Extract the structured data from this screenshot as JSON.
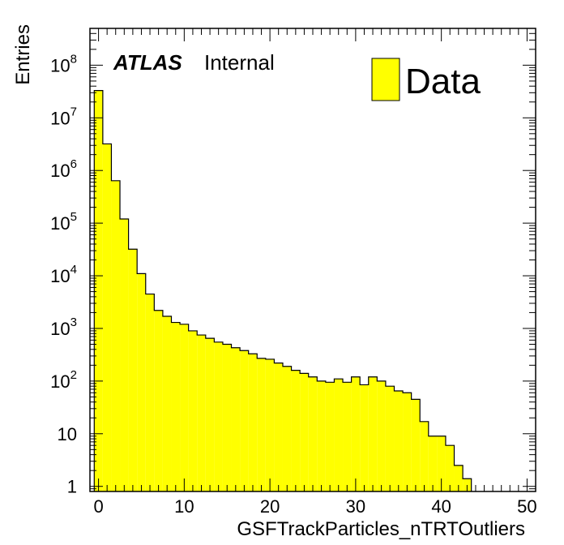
{
  "chart_data": {
    "type": "bar",
    "histogram": true,
    "y_scale": "log",
    "xlabel": "GSFTrackParticles_nTRTOutliers",
    "ylabel": "Entries",
    "xlim": [
      -1,
      51
    ],
    "ylim": [
      0.8,
      500000000
    ],
    "x_ticks": [
      0,
      10,
      20,
      30,
      40,
      50
    ],
    "x_tick_labels": [
      "0",
      "10",
      "20",
      "30",
      "40",
      "50"
    ],
    "y_ticks": [
      {
        "value": 1,
        "base": "1",
        "exp": ""
      },
      {
        "value": 10,
        "base": "10",
        "exp": ""
      },
      {
        "value": 100,
        "base": "10",
        "exp": "2"
      },
      {
        "value": 1000,
        "base": "10",
        "exp": "3"
      },
      {
        "value": 10000,
        "base": "10",
        "exp": "4"
      },
      {
        "value": 100000,
        "base": "10",
        "exp": "5"
      },
      {
        "value": 1000000,
        "base": "10",
        "exp": "6"
      },
      {
        "value": 10000000,
        "base": "10",
        "exp": "7"
      },
      {
        "value": 100000000,
        "base": "10",
        "exp": "8"
      }
    ],
    "bin_edges_start": -0.5,
    "bin_width": 1,
    "series": [
      {
        "name": "Data",
        "color": "#ffff00",
        "values": [
          33000000,
          3200000,
          640000,
          120000,
          32000,
          11000,
          4500,
          2200,
          1700,
          1300,
          1200,
          900,
          750,
          650,
          550,
          500,
          430,
          380,
          330,
          270,
          260,
          220,
          190,
          160,
          140,
          120,
          100,
          95,
          110,
          95,
          120,
          85,
          120,
          100,
          80,
          65,
          60,
          45,
          17,
          9,
          9,
          6,
          2.5,
          1.4
        ]
      }
    ],
    "legend": {
      "position": "top-right",
      "entries": [
        "Data"
      ]
    },
    "annotation": {
      "bold_text": "ATLAS",
      "text": "Internal"
    }
  }
}
